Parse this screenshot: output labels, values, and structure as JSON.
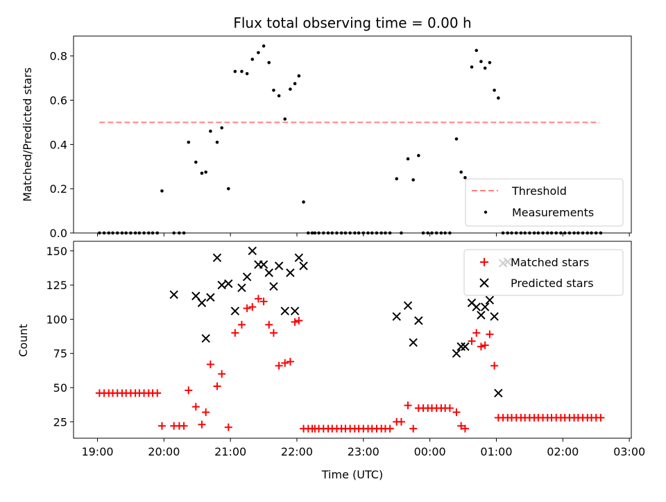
{
  "chart_data": [
    {
      "type": "scatter",
      "title": "Flux total observing time = 0.00 h",
      "xlabel": "",
      "ylabel": "Matched/Predicted stars",
      "xlim": [
        -0.36,
        8.03
      ],
      "ylim": [
        0,
        0.89
      ],
      "yticks": [
        0.0,
        0.2,
        0.4,
        0.6,
        0.8
      ],
      "ytick_labels": [
        "0.0",
        "0.2",
        "0.4",
        "0.6",
        "0.8"
      ],
      "legend_position": "lower-right",
      "series": [
        {
          "name": "Threshold",
          "style": "dashed-line",
          "color": "#ff7f7f",
          "x": [
            0.03,
            7.55
          ],
          "y": [
            0.5,
            0.5
          ]
        },
        {
          "name": "Measurements",
          "style": "dot",
          "color": "#000000",
          "x": [
            0.03,
            0.1,
            0.17,
            0.23,
            0.3,
            0.37,
            0.43,
            0.5,
            0.57,
            0.63,
            0.7,
            0.77,
            0.83,
            0.9,
            0.97,
            1.15,
            1.23,
            1.3,
            1.37,
            1.48,
            1.57,
            1.63,
            1.7,
            1.8,
            1.87,
            1.97,
            2.07,
            2.17,
            2.25,
            2.33,
            2.42,
            2.5,
            2.58,
            2.65,
            2.73,
            2.82,
            2.9,
            2.97,
            3.03,
            3.1,
            3.17,
            3.23,
            3.27,
            3.33,
            3.4,
            3.47,
            3.53,
            3.6,
            3.67,
            3.73,
            3.8,
            3.87,
            3.93,
            4.0,
            4.07,
            4.13,
            4.2,
            4.27,
            4.33,
            4.4,
            4.5,
            4.57,
            4.67,
            4.75,
            4.83,
            4.9,
            4.97,
            5.03,
            5.1,
            5.17,
            5.23,
            5.3,
            5.4,
            5.47,
            5.53,
            5.63,
            5.7,
            5.77,
            5.83,
            5.9,
            5.97,
            6.03,
            6.1,
            6.17,
            6.23,
            6.3,
            6.37,
            6.43,
            6.5,
            6.57,
            6.63,
            6.7,
            6.77,
            6.83,
            6.9,
            6.97,
            7.03,
            7.1,
            7.17,
            7.23,
            7.3,
            7.37,
            7.43,
            7.5,
            7.57
          ],
          "y": [
            0,
            0,
            0,
            0,
            0,
            0,
            0,
            0,
            0,
            0,
            0,
            0,
            0,
            0,
            0.19,
            0,
            0,
            0,
            0.41,
            0.32,
            0.27,
            0.275,
            0.46,
            0.41,
            0.475,
            0.2,
            0.73,
            0.73,
            0.72,
            0.785,
            0.815,
            0.845,
            0.77,
            0.645,
            0.62,
            0.515,
            0.65,
            0.675,
            0.71,
            0.14,
            0,
            0,
            0,
            0,
            0,
            0,
            0,
            0,
            0,
            0,
            0,
            0,
            0,
            0,
            0,
            0,
            0,
            0,
            0,
            0,
            0.245,
            0,
            0.335,
            0.24,
            0.35,
            0,
            0,
            0,
            0,
            0,
            0,
            0,
            0.425,
            0.275,
            0.25,
            0.75,
            0.825,
            0.775,
            0.745,
            0.77,
            0.645,
            0.61,
            0,
            0,
            0,
            0,
            0,
            0,
            0,
            0,
            0,
            0,
            0,
            0,
            0,
            0,
            0,
            0,
            0,
            0,
            0,
            0,
            0,
            0,
            0
          ]
        }
      ]
    },
    {
      "type": "scatter",
      "title": "",
      "xlabel": "Time (UTC)",
      "ylabel": "Count",
      "xlim": [
        -0.36,
        8.03
      ],
      "ylim": [
        13,
        157
      ],
      "yticks": [
        25,
        50,
        75,
        100,
        125,
        150
      ],
      "ytick_labels": [
        "25",
        "50",
        "75",
        "100",
        "125",
        "150"
      ],
      "xticks": [
        0,
        1,
        2,
        3,
        4,
        5,
        6,
        7,
        8
      ],
      "xtick_labels": [
        "19:00",
        "20:00",
        "21:00",
        "22:00",
        "23:00",
        "00:00",
        "01:00",
        "02:00",
        "03:00"
      ],
      "legend_position": "upper-right",
      "series": [
        {
          "name": "Matched stars",
          "marker": "plus",
          "color": "#ff0000",
          "x": [
            0.03,
            0.1,
            0.17,
            0.23,
            0.3,
            0.37,
            0.43,
            0.5,
            0.57,
            0.63,
            0.7,
            0.77,
            0.83,
            0.9,
            0.97,
            1.15,
            1.23,
            1.3,
            1.37,
            1.48,
            1.57,
            1.63,
            1.7,
            1.8,
            1.87,
            1.97,
            2.07,
            2.17,
            2.25,
            2.33,
            2.42,
            2.5,
            2.58,
            2.65,
            2.73,
            2.82,
            2.9,
            2.97,
            3.03,
            3.1,
            3.17,
            3.23,
            3.27,
            3.33,
            3.4,
            3.47,
            3.53,
            3.6,
            3.67,
            3.73,
            3.8,
            3.87,
            3.93,
            4.0,
            4.07,
            4.13,
            4.2,
            4.27,
            4.33,
            4.4,
            4.5,
            4.57,
            4.67,
            4.75,
            4.83,
            4.9,
            4.97,
            5.03,
            5.1,
            5.17,
            5.23,
            5.3,
            5.4,
            5.47,
            5.53,
            5.63,
            5.7,
            5.77,
            5.83,
            5.9,
            5.97,
            6.03,
            6.1,
            6.17,
            6.23,
            6.3,
            6.37,
            6.43,
            6.5,
            6.57,
            6.63,
            6.7,
            6.77,
            6.83,
            6.9,
            6.97,
            7.03,
            7.1,
            7.17,
            7.23,
            7.3,
            7.37,
            7.43,
            7.5,
            7.57
          ],
          "y": [
            46,
            46,
            46,
            46,
            46,
            46,
            46,
            46,
            46,
            46,
            46,
            46,
            46,
            46,
            22,
            22,
            22,
            22,
            48,
            36,
            23,
            32,
            67,
            51,
            60,
            21,
            90,
            96,
            108,
            109,
            115,
            113,
            96,
            90,
            66,
            68,
            69,
            98,
            99,
            20,
            20,
            20,
            20,
            20,
            20,
            20,
            20,
            20,
            20,
            20,
            20,
            20,
            20,
            20,
            20,
            20,
            20,
            20,
            20,
            20,
            25,
            25,
            37,
            20,
            35,
            35,
            35,
            35,
            35,
            35,
            35,
            35,
            32,
            22,
            20,
            84,
            90,
            80,
            81,
            89,
            66,
            28,
            28,
            28,
            28,
            28,
            28,
            28,
            28,
            28,
            28,
            28,
            28,
            28,
            28,
            28,
            28,
            28,
            28,
            28,
            28,
            28,
            28,
            28,
            28
          ]
        },
        {
          "name": "Predicted stars",
          "marker": "x",
          "color": "#000000",
          "x": [
            1.15,
            1.48,
            1.57,
            1.63,
            1.7,
            1.8,
            1.87,
            1.97,
            2.07,
            2.17,
            2.25,
            2.33,
            2.42,
            2.5,
            2.58,
            2.65,
            2.73,
            2.82,
            2.9,
            2.97,
            3.03,
            3.1,
            4.5,
            4.67,
            4.75,
            4.83,
            5.4,
            5.47,
            5.53,
            5.63,
            5.7,
            5.77,
            5.83,
            5.9,
            5.97,
            6.03,
            6.1,
            6.17
          ],
          "y": [
            118,
            117,
            112,
            86,
            116,
            145,
            125,
            126,
            106,
            123,
            131,
            150,
            140,
            140,
            134,
            124,
            139,
            106,
            134,
            106,
            145,
            139,
            102,
            110,
            83,
            99,
            75,
            80,
            80,
            112,
            109,
            103,
            109,
            114,
            102,
            46,
            141,
            142
          ]
        }
      ]
    }
  ]
}
